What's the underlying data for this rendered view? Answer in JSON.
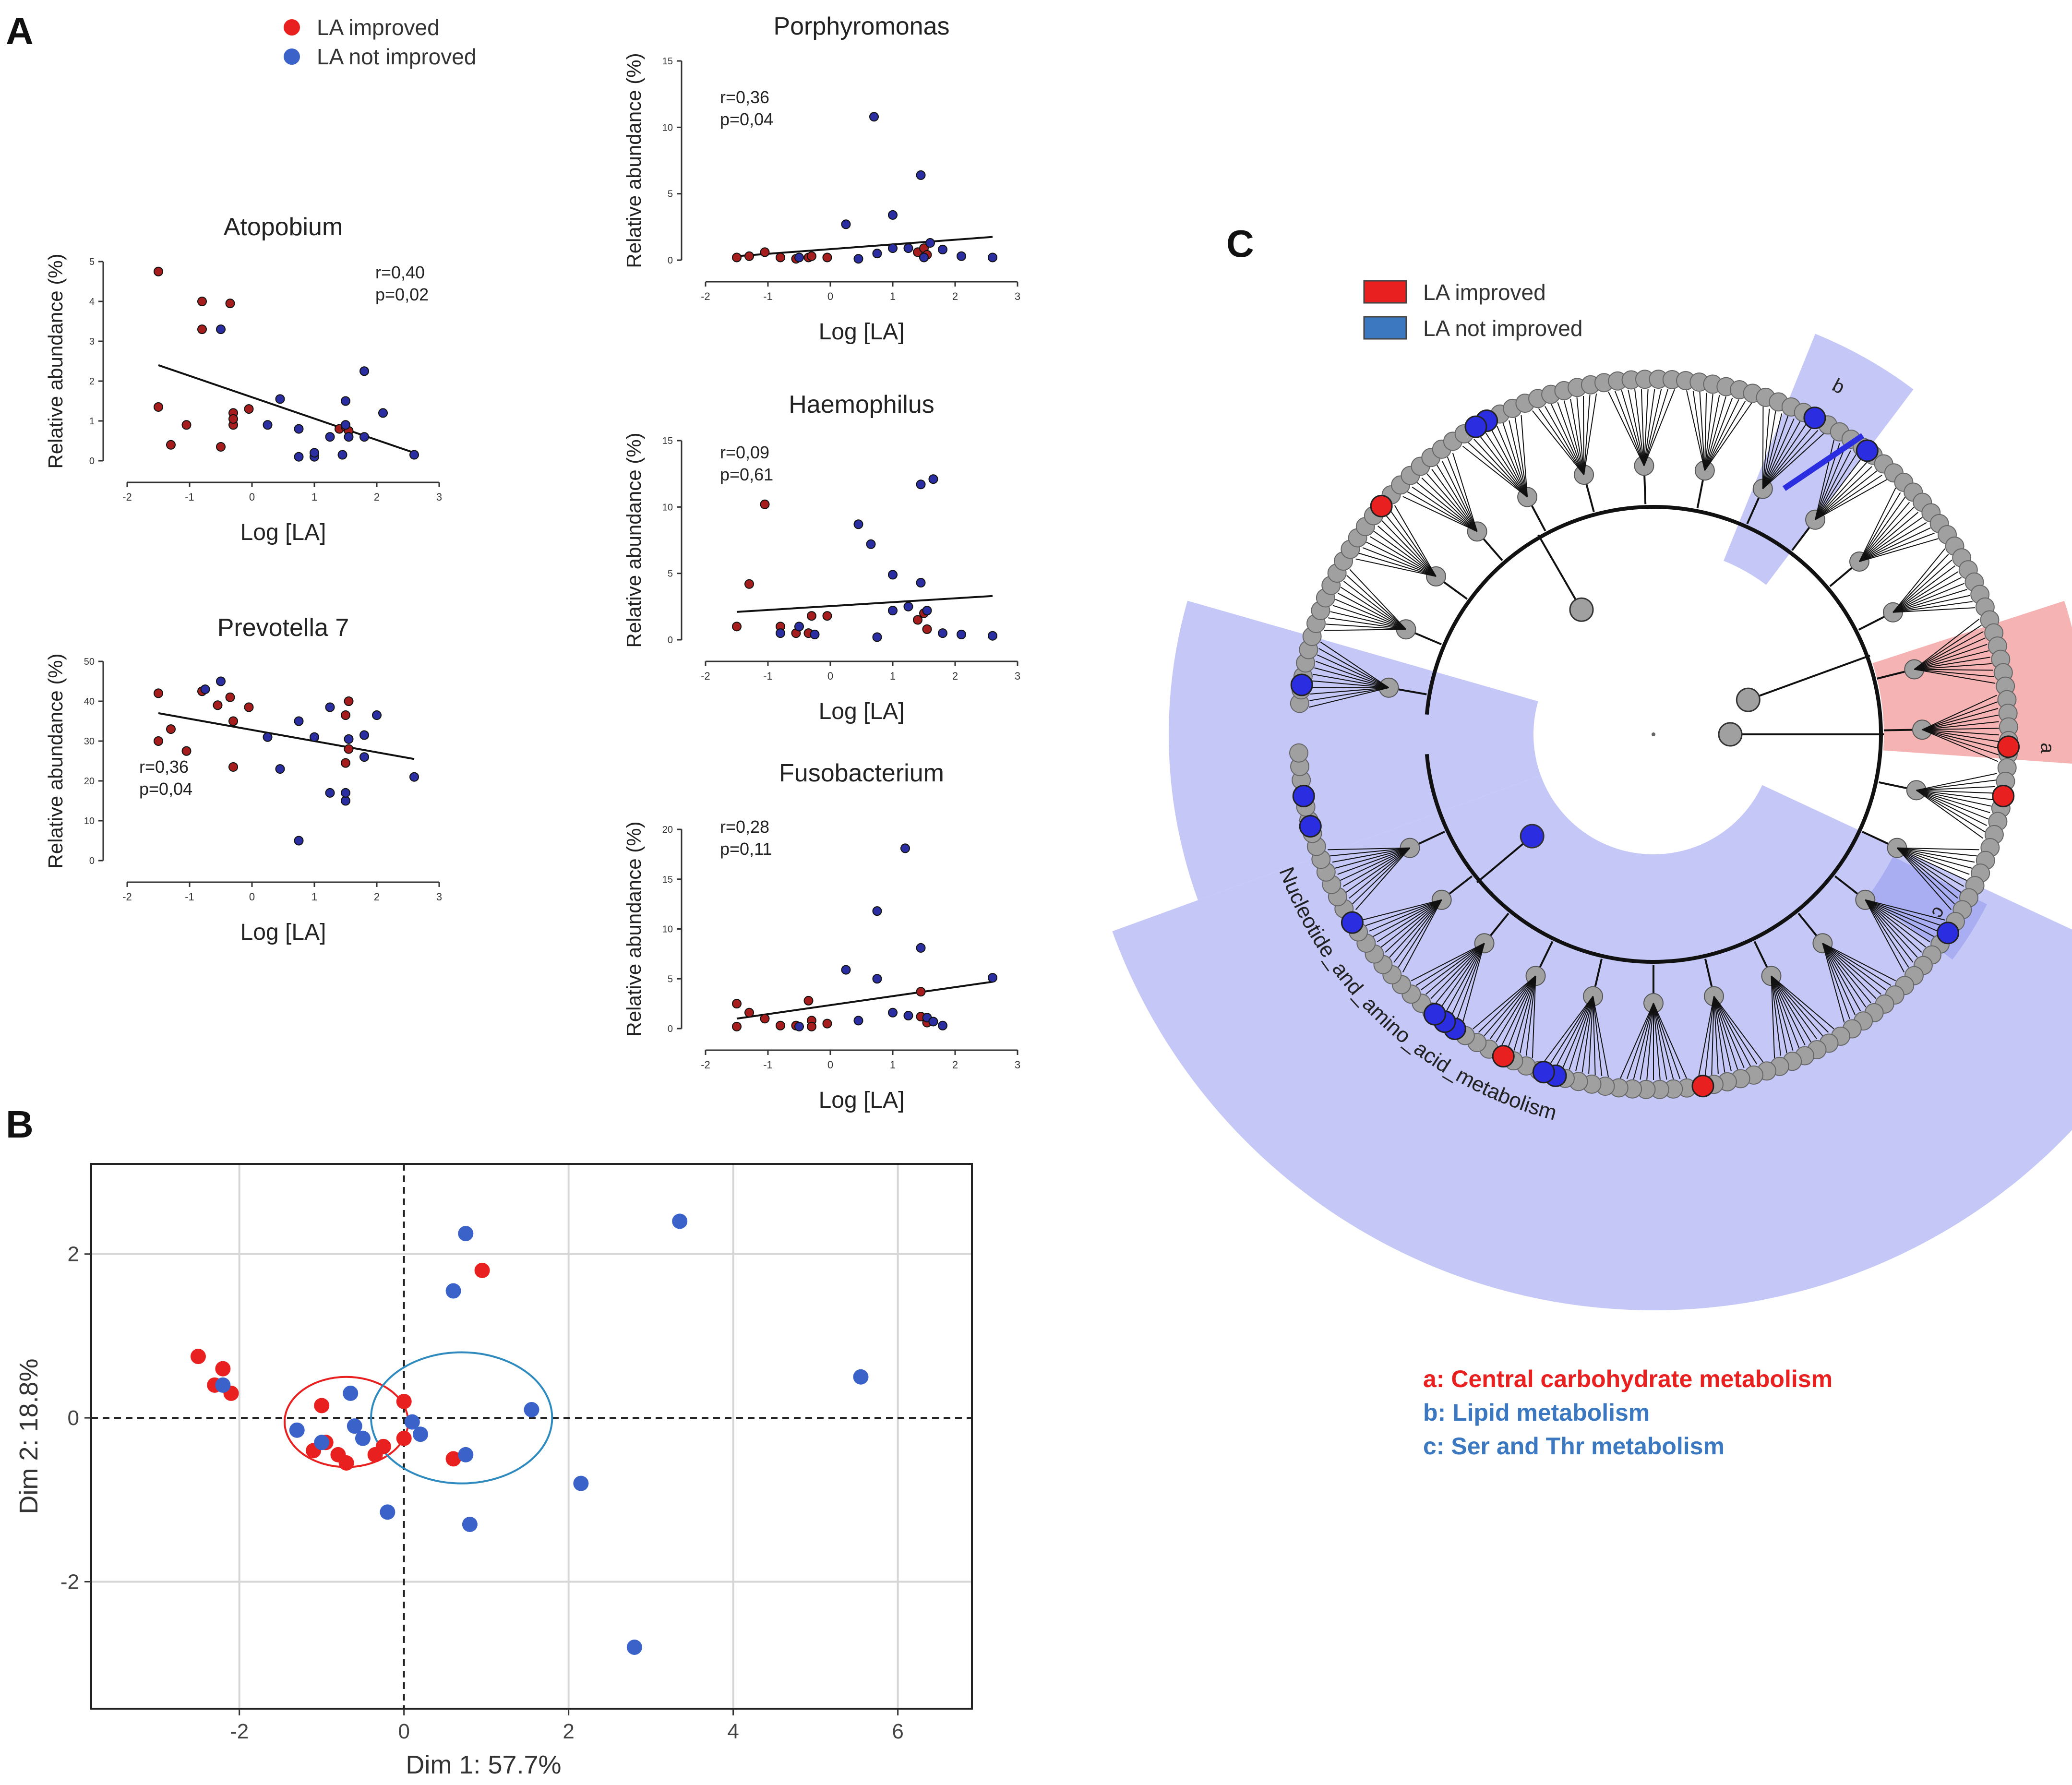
{
  "panel_labels": {
    "a": "A",
    "b": "B",
    "c": "C"
  },
  "colors": {
    "improved": "#e8201f",
    "not_improved": "#3b62c9",
    "improved_dark": "#a61d1d",
    "not_improved_dark": "#2a2ea0",
    "tree_node": "#a0a0a0",
    "highlight_blue": "#c5c8f7",
    "highlight_red": "#f6b3b3",
    "ellipse_blue": "#2f8bbf"
  },
  "legend_a": {
    "improved": "LA improved",
    "not_improved": "LA not improved"
  },
  "legend_c": {
    "improved": "LA improved",
    "not_improved": "LA not improved"
  },
  "pathway_label": "Nucleotide_and_amino_acid_metabolism",
  "clade_labels": [
    "a",
    "b",
    "c"
  ],
  "clade_legend": [
    {
      "text": "a: Central carbohydrate metabolism",
      "color": "#e8201f"
    },
    {
      "text": "b: Lipid metabolism",
      "color": "#3b78c0"
    },
    {
      "text": "c: Ser and Thr metabolism",
      "color": "#3b78c0"
    }
  ],
  "chart_data": [
    {
      "id": "atopobium",
      "type": "scatter",
      "title": "Atopobium",
      "xlabel": "Log [LA]",
      "ylabel": "Relative abundance (%)",
      "xlim": [
        -2,
        3
      ],
      "ylim": [
        0,
        5
      ],
      "xticks": [
        "-2",
        "-1",
        "0",
        "1",
        "2",
        "3"
      ],
      "yticks": [
        "0",
        "1",
        "2",
        "3",
        "4",
        "5"
      ],
      "stats": [
        "r=0,40",
        "p=0,02"
      ],
      "trend": [
        [
          -1.5,
          2.4
        ],
        [
          2.6,
          0.2
        ]
      ],
      "improved": [
        [
          -1.5,
          4.75
        ],
        [
          -1.5,
          1.35
        ],
        [
          -1.3,
          0.4
        ],
        [
          -1.05,
          0.9
        ],
        [
          -0.8,
          4.0
        ],
        [
          -0.8,
          3.3
        ],
        [
          -0.5,
          0.35
        ],
        [
          -0.35,
          3.95
        ],
        [
          -0.3,
          1.2
        ],
        [
          -0.3,
          0.9
        ],
        [
          -0.3,
          1.05
        ],
        [
          -0.05,
          1.3
        ],
        [
          1.4,
          0.8
        ],
        [
          1.5,
          0.85
        ],
        [
          1.55,
          0.75
        ]
      ],
      "not_improved": [
        [
          -0.5,
          3.3
        ],
        [
          0.25,
          0.9
        ],
        [
          0.45,
          1.55
        ],
        [
          0.75,
          0.8
        ],
        [
          0.75,
          0.1
        ],
        [
          1.0,
          0.1
        ],
        [
          1.0,
          0.2
        ],
        [
          1.25,
          0.6
        ],
        [
          1.45,
          0.15
        ],
        [
          1.5,
          1.5
        ],
        [
          1.5,
          0.9
        ],
        [
          1.55,
          0.6
        ],
        [
          1.8,
          2.25
        ],
        [
          1.8,
          0.6
        ],
        [
          2.1,
          1.2
        ],
        [
          2.6,
          0.15
        ]
      ]
    },
    {
      "id": "prevotella",
      "type": "scatter",
      "title": "Prevotella 7",
      "xlabel": "Log [LA]",
      "ylabel": "Relative abundance (%)",
      "xlim": [
        -2,
        3
      ],
      "ylim": [
        0,
        50
      ],
      "xticks": [
        "-2",
        "-1",
        "0",
        "1",
        "2",
        "3"
      ],
      "yticks": [
        "0",
        "10",
        "20",
        "30",
        "40",
        "50"
      ],
      "stats": [
        "r=0,36",
        "p=0,04"
      ],
      "trend": [
        [
          -1.5,
          37
        ],
        [
          2.6,
          25.5
        ]
      ],
      "improved": [
        [
          -1.5,
          42
        ],
        [
          -1.5,
          30
        ],
        [
          -1.3,
          33
        ],
        [
          -1.05,
          27.5
        ],
        [
          -0.8,
          42.5
        ],
        [
          -0.55,
          39
        ],
        [
          -0.35,
          41
        ],
        [
          -0.3,
          35
        ],
        [
          -0.3,
          23.5
        ],
        [
          -0.05,
          38.5
        ],
        [
          1.5,
          36.5
        ],
        [
          1.55,
          40
        ],
        [
          1.55,
          28
        ],
        [
          1.5,
          24.5
        ]
      ],
      "not_improved": [
        [
          -0.75,
          43
        ],
        [
          -0.5,
          45
        ],
        [
          0.25,
          31
        ],
        [
          0.45,
          23
        ],
        [
          0.75,
          35
        ],
        [
          0.75,
          5
        ],
        [
          1.0,
          31
        ],
        [
          1.25,
          17
        ],
        [
          1.25,
          38.5
        ],
        [
          1.5,
          15
        ],
        [
          1.5,
          17
        ],
        [
          1.55,
          30.5
        ],
        [
          1.8,
          31.5
        ],
        [
          1.8,
          26
        ],
        [
          2.0,
          36.5
        ],
        [
          2.6,
          21
        ]
      ]
    },
    {
      "id": "porphyromonas",
      "type": "scatter",
      "title": "Porphyromonas",
      "xlabel": "Log [LA]",
      "ylabel": "Relative abundance (%)",
      "xlim": [
        -2,
        3
      ],
      "ylim": [
        0,
        15
      ],
      "xticks": [
        "-2",
        "-1",
        "0",
        "1",
        "2",
        "3"
      ],
      "yticks": [
        "0",
        "5",
        "10",
        "15"
      ],
      "stats": [
        "r=0,36",
        "p=0,04"
      ],
      "trend": [
        [
          -1.5,
          0.3
        ],
        [
          2.6,
          1.75
        ]
      ],
      "improved": [
        [
          -1.5,
          0.2
        ],
        [
          -1.3,
          0.3
        ],
        [
          -1.05,
          0.6
        ],
        [
          -0.8,
          0.2
        ],
        [
          -0.55,
          0.1
        ],
        [
          -0.35,
          0.2
        ],
        [
          -0.3,
          0.3
        ],
        [
          -0.05,
          0.2
        ],
        [
          1.4,
          0.6
        ],
        [
          1.5,
          0.9
        ],
        [
          1.55,
          0.4
        ]
      ],
      "not_improved": [
        [
          -0.5,
          0.2
        ],
        [
          0.25,
          2.7
        ],
        [
          0.45,
          0.1
        ],
        [
          0.7,
          10.8
        ],
        [
          0.75,
          0.5
        ],
        [
          1.0,
          3.4
        ],
        [
          1.0,
          0.9
        ],
        [
          1.25,
          0.9
        ],
        [
          1.45,
          6.4
        ],
        [
          1.5,
          0.2
        ],
        [
          1.6,
          1.3
        ],
        [
          1.8,
          0.8
        ],
        [
          2.1,
          0.3
        ],
        [
          2.6,
          0.2
        ]
      ]
    },
    {
      "id": "haemophilus",
      "type": "scatter",
      "title": "Haemophilus",
      "xlabel": "Log [LA]",
      "ylabel": "Relative abundance (%)",
      "xlim": [
        -2,
        3
      ],
      "ylim": [
        0,
        15
      ],
      "xticks": [
        "-2",
        "-1",
        "0",
        "1",
        "2",
        "3"
      ],
      "yticks": [
        "0",
        "5",
        "10",
        "15"
      ],
      "stats": [
        "r=0,09",
        "p=0,61"
      ],
      "trend": [
        [
          -1.5,
          2.1
        ],
        [
          2.6,
          3.3
        ]
      ],
      "improved": [
        [
          -1.5,
          1.0
        ],
        [
          -1.3,
          4.2
        ],
        [
          -1.05,
          10.2
        ],
        [
          -0.8,
          1.0
        ],
        [
          -0.55,
          0.5
        ],
        [
          -0.35,
          0.5
        ],
        [
          -0.3,
          1.8
        ],
        [
          -0.05,
          1.8
        ],
        [
          1.4,
          1.5
        ],
        [
          1.5,
          2.0
        ],
        [
          1.55,
          0.8
        ]
      ],
      "not_improved": [
        [
          -0.8,
          0.5
        ],
        [
          -0.5,
          1.0
        ],
        [
          -0.25,
          0.4
        ],
        [
          0.45,
          8.7
        ],
        [
          0.65,
          7.2
        ],
        [
          0.75,
          0.2
        ],
        [
          1.0,
          4.9
        ],
        [
          1.0,
          2.2
        ],
        [
          1.25,
          2.5
        ],
        [
          1.45,
          11.7
        ],
        [
          1.45,
          4.3
        ],
        [
          1.55,
          2.2
        ],
        [
          1.65,
          12.1
        ],
        [
          1.8,
          0.5
        ],
        [
          2.1,
          0.4
        ],
        [
          2.6,
          0.3
        ]
      ]
    },
    {
      "id": "fusobacterium",
      "type": "scatter",
      "title": "Fusobacterium",
      "xlabel": "Log [LA]",
      "ylabel": "Relative abundance (%)",
      "xlim": [
        -2,
        3
      ],
      "ylim": [
        0,
        20
      ],
      "xticks": [
        "-2",
        "-1",
        "0",
        "1",
        "2",
        "3"
      ],
      "yticks": [
        "0",
        "5",
        "10",
        "15",
        "20"
      ],
      "stats": [
        "r=0,28",
        "p=0,11"
      ],
      "trend": [
        [
          -1.5,
          1.0
        ],
        [
          2.6,
          4.7
        ]
      ],
      "improved": [
        [
          -1.5,
          2.5
        ],
        [
          -1.5,
          0.2
        ],
        [
          -1.3,
          1.6
        ],
        [
          -1.05,
          1.0
        ],
        [
          -0.8,
          0.3
        ],
        [
          -0.55,
          0.3
        ],
        [
          -0.35,
          2.8
        ],
        [
          -0.3,
          0.8
        ],
        [
          -0.3,
          0.2
        ],
        [
          -0.05,
          0.5
        ],
        [
          1.45,
          3.7
        ],
        [
          1.55,
          0.6
        ],
        [
          1.45,
          1.2
        ]
      ],
      "not_improved": [
        [
          -0.5,
          0.2
        ],
        [
          0.25,
          5.9
        ],
        [
          0.45,
          0.8
        ],
        [
          0.75,
          11.8
        ],
        [
          0.75,
          5.0
        ],
        [
          1.0,
          1.6
        ],
        [
          1.2,
          18.1
        ],
        [
          1.25,
          1.3
        ],
        [
          1.45,
          8.1
        ],
        [
          1.55,
          1.1
        ],
        [
          1.65,
          0.7
        ],
        [
          1.8,
          0.3
        ],
        [
          2.6,
          5.1
        ]
      ]
    },
    {
      "id": "pca",
      "type": "scatter",
      "title": "",
      "xlabel": "Dim 1: 57.7%",
      "ylabel": "Dim 2: 18.8%",
      "xlim": [
        -3.8,
        6.9
      ],
      "ylim": [
        -3.55,
        3.1
      ],
      "xticks": [
        "-2",
        "0",
        "2",
        "4",
        "6"
      ],
      "yticks": [
        "-2",
        "0",
        "2"
      ],
      "improved": [
        [
          -2.5,
          0.75
        ],
        [
          -2.2,
          0.6
        ],
        [
          -2.3,
          0.4
        ],
        [
          -2.1,
          0.3
        ],
        [
          -1.0,
          0.15
        ],
        [
          -1.1,
          -0.4
        ],
        [
          -0.95,
          -0.3
        ],
        [
          -0.8,
          -0.45
        ],
        [
          -0.7,
          -0.55
        ],
        [
          -0.35,
          -0.45
        ],
        [
          -0.25,
          -0.35
        ],
        [
          0.0,
          0.2
        ],
        [
          0.0,
          -0.25
        ],
        [
          0.6,
          -0.5
        ],
        [
          0.95,
          1.8
        ]
      ],
      "not_improved": [
        [
          -2.2,
          0.4
        ],
        [
          -0.65,
          0.3
        ],
        [
          -1.3,
          -0.15
        ],
        [
          -1.0,
          -0.3
        ],
        [
          -0.6,
          -0.1
        ],
        [
          -0.5,
          -0.25
        ],
        [
          -0.2,
          -1.15
        ],
        [
          0.1,
          -0.05
        ],
        [
          0.2,
          -0.2
        ],
        [
          0.6,
          1.55
        ],
        [
          0.75,
          2.25
        ],
        [
          0.75,
          -0.45
        ],
        [
          0.8,
          -1.3
        ],
        [
          1.55,
          0.1
        ],
        [
          2.15,
          -0.8
        ],
        [
          2.8,
          -2.8
        ],
        [
          3.35,
          2.4
        ],
        [
          5.55,
          0.5
        ]
      ],
      "ellipses": [
        {
          "group": "improved",
          "cx": -0.7,
          "cy": -0.05,
          "rx": 0.75,
          "ry": 0.55
        },
        {
          "group": "not_improved",
          "cx": 0.7,
          "cy": 0.0,
          "rx": 1.1,
          "ry": 0.8
        }
      ]
    }
  ]
}
